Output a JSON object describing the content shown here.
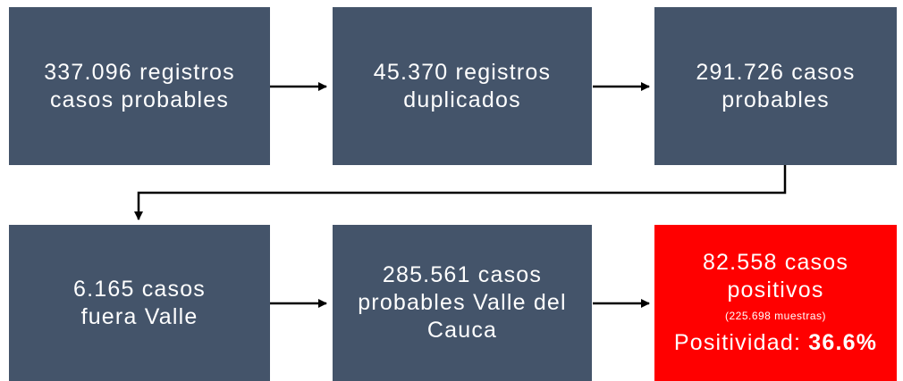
{
  "nodes": [
    {
      "lines": [
        "337.096 registros",
        "casos probables"
      ]
    },
    {
      "lines": [
        "45.370 registros",
        "duplicados"
      ]
    },
    {
      "lines": [
        "291.726 casos",
        "probables"
      ]
    },
    {
      "lines": [
        "6.165 casos",
        "fuera Valle"
      ]
    },
    {
      "lines": [
        "285.561 casos",
        "probables Valle del",
        "Cauca"
      ]
    },
    {
      "lines": [
        "82.558 casos",
        "positivos"
      ],
      "note": "(225.698 muestras)",
      "positivity_label": "Positividad:",
      "positivity_value": "36.6%"
    }
  ]
}
